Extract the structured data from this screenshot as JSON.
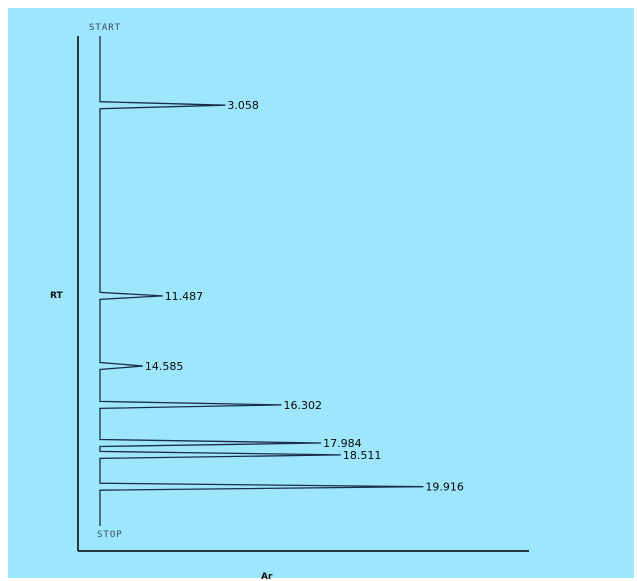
{
  "chart_data": {
    "type": "line",
    "title": "",
    "xlabel": "Ar",
    "ylabel": "RT",
    "start_label": "START",
    "stop_label": "STOP",
    "ylim": [
      0,
      21.3
    ],
    "xlim": [
      0,
      100
    ],
    "grid": false,
    "colors": {
      "background": "#9ee6fb",
      "trace": "#1b2d4c",
      "axis": "#000000"
    },
    "peaks": [
      {
        "rt": 3.058,
        "label": "3.058",
        "height": 38
      },
      {
        "rt": 11.487,
        "label": "11.487",
        "height": 19
      },
      {
        "rt": 14.585,
        "label": "14.585",
        "height": 13
      },
      {
        "rt": 16.302,
        "label": "16.302",
        "height": 55
      },
      {
        "rt": 17.984,
        "label": "17.984",
        "height": 67
      },
      {
        "rt": 18.511,
        "label": "18.511",
        "height": 73
      },
      {
        "rt": 19.916,
        "label": "19.916",
        "height": 98
      }
    ]
  }
}
